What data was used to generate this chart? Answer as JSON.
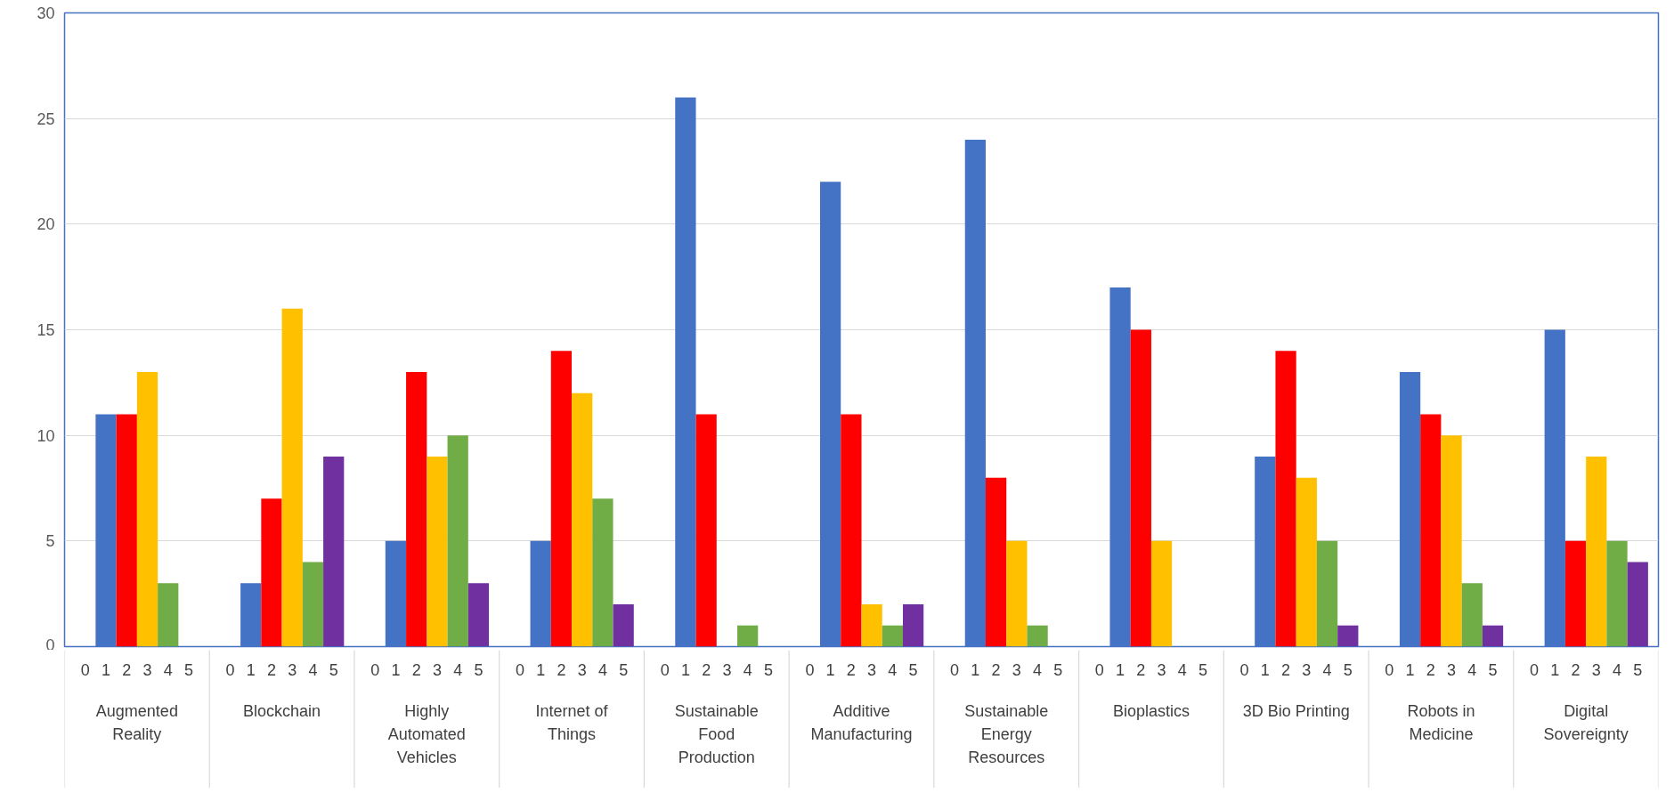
{
  "chart_data": {
    "type": "bar",
    "categories": [
      "Augmented Reality",
      "Blockchain",
      "Highly Automated Vehicles",
      "Internet of Things",
      "Sustainable Food Production",
      "Additive Manufacturing",
      "Sustainable Energy Resources",
      "Bioplastics",
      "3D Bio Printing",
      "Robots in Medicine",
      "Digital Sovereignty"
    ],
    "series": [
      {
        "name": "0",
        "values": [
          0,
          0,
          0,
          0,
          0,
          0,
          0,
          0,
          0,
          0,
          0
        ]
      },
      {
        "name": "1",
        "color": "#4472c4",
        "values": [
          11,
          3,
          5,
          5,
          26,
          22,
          24,
          17,
          9,
          13,
          15
        ]
      },
      {
        "name": "2",
        "color": "#ff0000",
        "values": [
          11,
          7,
          13,
          14,
          11,
          11,
          8,
          15,
          14,
          11,
          5
        ]
      },
      {
        "name": "3",
        "color": "#ffc000",
        "values": [
          13,
          16,
          9,
          12,
          0,
          2,
          5,
          5,
          8,
          10,
          9
        ]
      },
      {
        "name": "4",
        "color": "#70ad47",
        "values": [
          3,
          4,
          10,
          7,
          1,
          1,
          1,
          0,
          5,
          3,
          5
        ]
      },
      {
        "name": "5",
        "color": "#7030a0",
        "values": [
          0,
          9,
          3,
          2,
          0,
          2,
          0,
          0,
          1,
          1,
          4
        ]
      }
    ],
    "ylim": [
      0,
      30
    ],
    "yticks": [
      0,
      5,
      10,
      15,
      20,
      25,
      30
    ],
    "grid": "y"
  }
}
